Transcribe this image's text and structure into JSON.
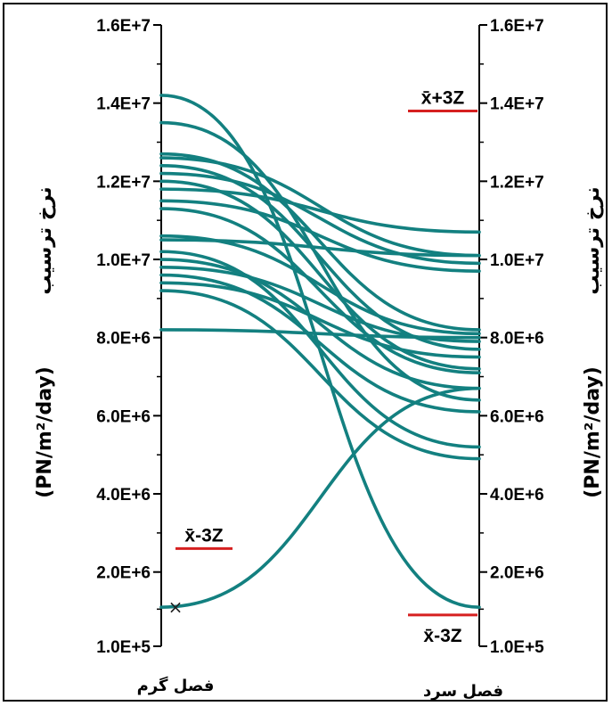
{
  "chart_data": {
    "type": "line",
    "categories": [
      "فصل گرم",
      "فصل سرد"
    ],
    "ylabel_fa": "نرخ ترسیب",
    "ylabel_unit": "(PN/m²/day)",
    "ylim": [
      100000,
      16000000
    ],
    "y_ticks": [
      {
        "value": 100000,
        "label": "1.0E+5"
      },
      {
        "value": 2000000,
        "label": "2.0E+6"
      },
      {
        "value": 4000000,
        "label": "4.0E+6"
      },
      {
        "value": 6000000,
        "label": "6.0E+6"
      },
      {
        "value": 8000000,
        "label": "8.0E+6"
      },
      {
        "value": 10000000,
        "label": "1.0E+7"
      },
      {
        "value": 12000000,
        "label": "1.2E+7"
      },
      {
        "value": 14000000,
        "label": "1.4E+7"
      },
      {
        "value": 16000000,
        "label": "1.6E+7"
      }
    ],
    "series_color": "#138080",
    "reference_color": "#d62020",
    "series": [
      {
        "values": [
          14200000,
          1100000
        ]
      },
      {
        "values": [
          13500000,
          6400000
        ]
      },
      {
        "values": [
          12700000,
          8200000
        ]
      },
      {
        "values": [
          12600000,
          10100000
        ]
      },
      {
        "values": [
          12400000,
          7700000
        ]
      },
      {
        "values": [
          12200000,
          9900000
        ]
      },
      {
        "values": [
          12000000,
          7200000
        ]
      },
      {
        "values": [
          11800000,
          10700000
        ]
      },
      {
        "values": [
          11500000,
          9700000
        ]
      },
      {
        "values": [
          11300000,
          7100000
        ]
      },
      {
        "values": [
          10600000,
          8100000
        ]
      },
      {
        "values": [
          10500000,
          10100000
        ]
      },
      {
        "values": [
          10200000,
          5200000
        ]
      },
      {
        "values": [
          10000000,
          6700000
        ]
      },
      {
        "values": [
          9800000,
          7900000
        ]
      },
      {
        "values": [
          9600000,
          6100000
        ]
      },
      {
        "values": [
          9400000,
          7500000
        ]
      },
      {
        "values": [
          9200000,
          4900000
        ]
      },
      {
        "values": [
          8200000,
          8000000
        ]
      },
      {
        "values": [
          1100000,
          6700000
        ]
      }
    ],
    "marker": {
      "category": "فصل گرم",
      "value": 1100000,
      "symbol": "×"
    },
    "reference_lines": [
      {
        "category": "فصل گرم",
        "label": "x̄-3Z",
        "value": 2600000
      },
      {
        "category": "فصل سرد",
        "label": "x̄+3Z",
        "value": 13800000
      },
      {
        "category": "فصل سرد",
        "label": "x̄-3Z",
        "value": 900000
      }
    ]
  }
}
